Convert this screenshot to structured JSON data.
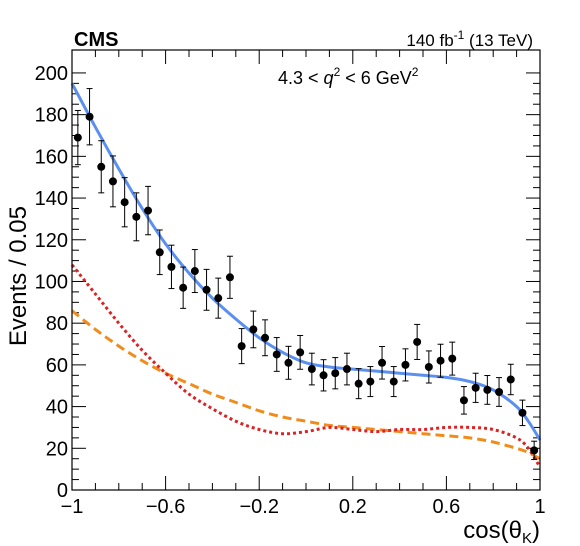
{
  "chart_data": {
    "type": "scatter",
    "experiment": "CMS",
    "lumi": {
      "value": "140 fb",
      "exp": "-1",
      "energy": " (13 TeV)"
    },
    "region": {
      "pre": "4.3 < ",
      "var": "q",
      "var_exp": "2",
      "post": " < 6 GeV",
      "post_exp": "2"
    },
    "ylabel": "Events / 0.05",
    "xlabel": {
      "main": "cos(θ",
      "sub": "K",
      "close": ")"
    },
    "xlim": [
      -1,
      1
    ],
    "ylim": [
      0,
      210
    ],
    "xticks": [
      -1,
      -0.6,
      -0.2,
      0.2,
      0.6,
      1
    ],
    "xtick_labels": [
      "−1",
      "−0.6",
      "−0.2",
      "0.2",
      "0.6",
      "1"
    ],
    "yticks": [
      0,
      20,
      40,
      60,
      80,
      100,
      120,
      140,
      160,
      180,
      200
    ],
    "ytick_labels": [
      "0",
      "20",
      "40",
      "60",
      "80",
      "100",
      "120",
      "140",
      "160",
      "180",
      "200"
    ],
    "colors": {
      "total": "#5b8ff0",
      "red": "#dd2222",
      "orange": "#f08c1c",
      "points": "#000000"
    },
    "series": [
      {
        "kind": "points",
        "x": [
          -0.975,
          -0.925,
          -0.875,
          -0.825,
          -0.775,
          -0.725,
          -0.675,
          -0.625,
          -0.575,
          -0.525,
          -0.475,
          -0.425,
          -0.375,
          -0.325,
          -0.275,
          -0.225,
          -0.175,
          -0.125,
          -0.075,
          -0.025,
          0.025,
          0.075,
          0.125,
          0.175,
          0.225,
          0.275,
          0.325,
          0.375,
          0.425,
          0.475,
          0.525,
          0.575,
          0.625,
          0.675,
          0.725,
          0.775,
          0.825,
          0.875,
          0.925,
          0.975
        ],
        "y": [
          169,
          179,
          155,
          148,
          138,
          131,
          134,
          114,
          107,
          97,
          105,
          96,
          92,
          102,
          69,
          77,
          73,
          65,
          61,
          66,
          58,
          55,
          56,
          58,
          51,
          52,
          61,
          52,
          60,
          71,
          59,
          62,
          63,
          43,
          49,
          48,
          47,
          53,
          37,
          19
        ],
        "err": [
          13,
          13.5,
          12.5,
          12.2,
          11.8,
          11.5,
          11.6,
          10.7,
          10.4,
          9.9,
          10.3,
          9.8,
          9.6,
          10.1,
          8.4,
          8.8,
          8.6,
          8.1,
          7.9,
          8.1,
          7.6,
          7.5,
          7.5,
          7.6,
          7.2,
          7.2,
          7.8,
          7.2,
          7.7,
          8.4,
          7.7,
          7.9,
          7.9,
          6.6,
          7.0,
          6.9,
          6.9,
          7.3,
          6.1,
          4.4
        ]
      },
      {
        "kind": "curve",
        "style": "solid",
        "x": [
          -1,
          -0.9,
          -0.8,
          -0.7,
          -0.6,
          -0.5,
          -0.4,
          -0.3,
          -0.2,
          -0.1,
          0,
          0.1,
          0.2,
          0.3,
          0.4,
          0.5,
          0.6,
          0.7,
          0.8,
          0.9,
          0.95,
          1
        ],
        "y": [
          195,
          174,
          154,
          135,
          118,
          104,
          92,
          82,
          73,
          66,
          61,
          59,
          58,
          57,
          56,
          55,
          54,
          52,
          48,
          40,
          33,
          24
        ]
      },
      {
        "kind": "curve",
        "style": "dotted",
        "x": [
          -1,
          -0.9,
          -0.8,
          -0.7,
          -0.6,
          -0.5,
          -0.4,
          -0.3,
          -0.2,
          -0.1,
          0,
          0.1,
          0.2,
          0.3,
          0.4,
          0.5,
          0.6,
          0.7,
          0.8,
          0.9,
          0.95,
          1
        ],
        "y": [
          108,
          94,
          80,
          67,
          56,
          46,
          39,
          33,
          29,
          27,
          28,
          30,
          29,
          28,
          29,
          29,
          30,
          30,
          29,
          25,
          20,
          11
        ]
      },
      {
        "kind": "curve",
        "style": "dashed",
        "x": [
          -1,
          -0.9,
          -0.8,
          -0.7,
          -0.6,
          -0.5,
          -0.4,
          -0.3,
          -0.2,
          -0.1,
          0,
          0.1,
          0.2,
          0.3,
          0.4,
          0.5,
          0.6,
          0.7,
          0.8,
          0.9,
          0.95,
          1
        ],
        "y": [
          86,
          77,
          69,
          62,
          56,
          51,
          46,
          42,
          38,
          35,
          33,
          31,
          30,
          29,
          28,
          27,
          26,
          25,
          23,
          20,
          18,
          15
        ]
      }
    ]
  }
}
